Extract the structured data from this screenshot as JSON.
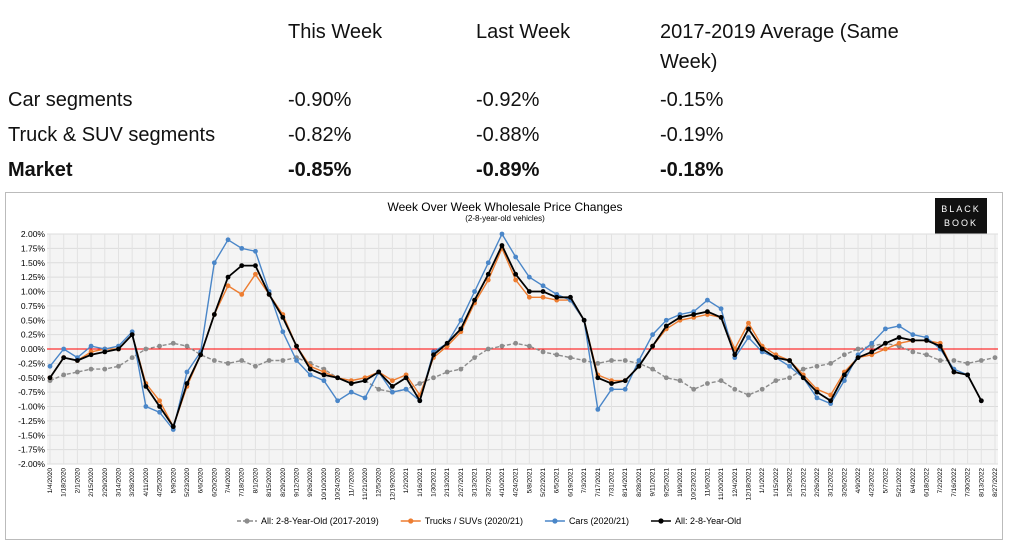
{
  "table": {
    "columns": [
      "This Week",
      "Last Week",
      "2017-2019 Average (Same Week)"
    ],
    "rows": [
      {
        "label": "Car segments",
        "cells": [
          "-0.90%",
          "-0.92%",
          "-0.15%"
        ]
      },
      {
        "label": "Truck & SUV segments",
        "cells": [
          "-0.82%",
          "-0.88%",
          "-0.19%"
        ]
      },
      {
        "label": "Market",
        "cells": [
          "-0.85%",
          "-0.89%",
          "-0.18%"
        ]
      }
    ]
  },
  "chart_data": {
    "type": "line",
    "title": "Week Over Week Wholesale Price Changes",
    "subtitle": "(2-8-year-old vehicles)",
    "logo": [
      "BLACK",
      "BOOK"
    ],
    "categories": [
      "1/4/2020",
      "1/18/2020",
      "2/1/2020",
      "2/15/2020",
      "2/29/2020",
      "3/14/2020",
      "3/28/2020",
      "4/11/2020",
      "4/25/2020",
      "5/9/2020",
      "5/23/2020",
      "6/6/2020",
      "6/20/2020",
      "7/4/2020",
      "7/18/2020",
      "8/1/2020",
      "8/15/2020",
      "8/29/2020",
      "9/12/2020",
      "9/26/2020",
      "10/10/2020",
      "10/24/2020",
      "11/7/2020",
      "11/21/2020",
      "12/5/2020",
      "12/19/2020",
      "1/2/2021",
      "1/16/2021",
      "1/30/2021",
      "2/13/2021",
      "2/27/2021",
      "3/13/2021",
      "3/27/2021",
      "4/10/2021",
      "4/24/2021",
      "5/8/2021",
      "5/22/2021",
      "6/5/2021",
      "6/19/2021",
      "7/3/2021",
      "7/17/2021",
      "7/31/2021",
      "8/14/2021",
      "8/28/2021",
      "9/11/2021",
      "9/25/2021",
      "10/9/2021",
      "10/23/2021",
      "11/6/2021",
      "11/20/2021",
      "12/4/2021",
      "12/18/2021",
      "1/1/2022",
      "1/15/2022",
      "1/29/2022",
      "2/12/2022",
      "2/26/2022",
      "3/12/2022",
      "3/26/2022",
      "4/9/2022",
      "4/23/2022",
      "5/7/2022",
      "5/21/2022",
      "6/4/2022",
      "6/18/2022",
      "7/2/2022",
      "7/16/2022",
      "7/30/2022",
      "8/13/2022",
      "8/27/2022"
    ],
    "series": [
      {
        "name": "All: 2-8-Year-Old (2017-2019)",
        "color": "#8c8c8c",
        "dashed": true,
        "values": [
          -0.55,
          -0.45,
          -0.4,
          -0.35,
          -0.35,
          -0.3,
          -0.15,
          0.0,
          0.05,
          0.1,
          0.05,
          -0.1,
          -0.2,
          -0.25,
          -0.2,
          -0.3,
          -0.2,
          -0.2,
          -0.15,
          -0.25,
          -0.35,
          -0.5,
          -0.6,
          -0.55,
          -0.7,
          -0.75,
          -0.7,
          -0.6,
          -0.5,
          -0.4,
          -0.35,
          -0.15,
          0.0,
          0.05,
          0.1,
          0.05,
          -0.05,
          -0.1,
          -0.15,
          -0.2,
          -0.25,
          -0.2,
          -0.2,
          -0.25,
          -0.35,
          -0.5,
          -0.55,
          -0.7,
          -0.6,
          -0.55,
          -0.7,
          -0.8,
          -0.7,
          -0.55,
          -0.5,
          -0.35,
          -0.3,
          -0.25,
          -0.1,
          0.0,
          0.05,
          0.1,
          0.05,
          -0.05,
          -0.1,
          -0.2,
          -0.2,
          -0.25,
          -0.2,
          -0.15
        ]
      },
      {
        "name": "Trucks / SUVs (2020/21)",
        "color": "#ed7d31",
        "values": [
          -0.5,
          -0.15,
          -0.2,
          -0.05,
          0.0,
          0.0,
          0.25,
          -0.6,
          -0.9,
          -1.35,
          -0.65,
          -0.1,
          0.6,
          1.1,
          0.95,
          1.3,
          0.95,
          0.6,
          0.05,
          -0.3,
          -0.4,
          -0.5,
          -0.55,
          -0.5,
          -0.4,
          -0.55,
          -0.45,
          -0.8,
          -0.15,
          0.05,
          0.3,
          0.8,
          1.2,
          1.75,
          1.2,
          0.9,
          0.9,
          0.85,
          0.85,
          0.5,
          -0.45,
          -0.55,
          -0.55,
          -0.3,
          0.05,
          0.35,
          0.5,
          0.55,
          0.6,
          0.55,
          0.0,
          0.45,
          0.05,
          -0.1,
          -0.2,
          -0.45,
          -0.7,
          -0.8,
          -0.4,
          -0.15,
          -0.1,
          0.0,
          0.1,
          0.15,
          0.15,
          0.1,
          -0.4,
          -0.45,
          -0.9,
          null
        ]
      },
      {
        "name": "Cars (2020/21)",
        "color": "#4a86c8",
        "values": [
          -0.3,
          0.0,
          -0.15,
          0.05,
          0.0,
          0.05,
          0.3,
          -1.0,
          -1.1,
          -1.4,
          -0.4,
          -0.05,
          1.5,
          1.9,
          1.75,
          1.7,
          1.0,
          0.3,
          -0.2,
          -0.45,
          -0.55,
          -0.9,
          -0.75,
          -0.85,
          -0.4,
          -0.75,
          -0.7,
          -0.9,
          -0.05,
          0.1,
          0.5,
          1.0,
          1.5,
          2.0,
          1.6,
          1.25,
          1.1,
          0.95,
          0.85,
          0.5,
          -1.05,
          -0.7,
          -0.7,
          -0.2,
          0.25,
          0.5,
          0.6,
          0.65,
          0.85,
          0.7,
          -0.15,
          0.2,
          -0.05,
          -0.15,
          -0.3,
          -0.5,
          -0.85,
          -0.95,
          -0.55,
          -0.1,
          0.1,
          0.35,
          0.4,
          0.25,
          0.2,
          0.0,
          -0.35,
          -0.45,
          -0.9,
          null
        ]
      },
      {
        "name": "All: 2-8-Year-Old",
        "color": "#000000",
        "values": [
          -0.5,
          -0.15,
          -0.2,
          -0.1,
          -0.05,
          0.0,
          0.25,
          -0.65,
          -1.0,
          -1.35,
          -0.6,
          -0.1,
          0.6,
          1.25,
          1.45,
          1.45,
          0.95,
          0.55,
          0.05,
          -0.35,
          -0.45,
          -0.5,
          -0.6,
          -0.55,
          -0.4,
          -0.65,
          -0.5,
          -0.9,
          -0.1,
          0.1,
          0.35,
          0.85,
          1.3,
          1.8,
          1.3,
          1.0,
          1.0,
          0.9,
          0.9,
          0.5,
          -0.5,
          -0.6,
          -0.55,
          -0.3,
          0.05,
          0.4,
          0.55,
          0.6,
          0.65,
          0.55,
          -0.1,
          0.35,
          0.0,
          -0.15,
          -0.2,
          -0.5,
          -0.75,
          -0.9,
          -0.45,
          -0.15,
          -0.05,
          0.1,
          0.2,
          0.15,
          0.15,
          0.05,
          -0.4,
          -0.45,
          -0.9,
          null
        ]
      }
    ],
    "ylim": [
      -2,
      2
    ],
    "yticks": [
      {
        "value": 2,
        "label": "2.00%"
      },
      {
        "value": 1.75,
        "label": "1.75%"
      },
      {
        "value": 1.5,
        "label": "1.50%"
      },
      {
        "value": 1.25,
        "label": "1.25%"
      },
      {
        "value": 1,
        "label": "1.00%"
      },
      {
        "value": 0.75,
        "label": "0.75%"
      },
      {
        "value": 0.5,
        "label": "0.50%"
      },
      {
        "value": 0.25,
        "label": "0.25%"
      },
      {
        "value": 0,
        "label": "0.00%"
      },
      {
        "value": -0.25,
        "label": "-0.25%"
      },
      {
        "value": -0.5,
        "label": "-0.50%"
      },
      {
        "value": -0.75,
        "label": "-0.75%"
      },
      {
        "value": -1,
        "label": "-1.00%"
      },
      {
        "value": -1.25,
        "label": "-1.25%"
      },
      {
        "value": -1.5,
        "label": "-1.50%"
      },
      {
        "value": -1.75,
        "label": "-1.75%"
      },
      {
        "value": -2,
        "label": "-2.00%"
      }
    ],
    "grid": true,
    "zero_line_color": "#ff0000",
    "legend": "bottom"
  }
}
